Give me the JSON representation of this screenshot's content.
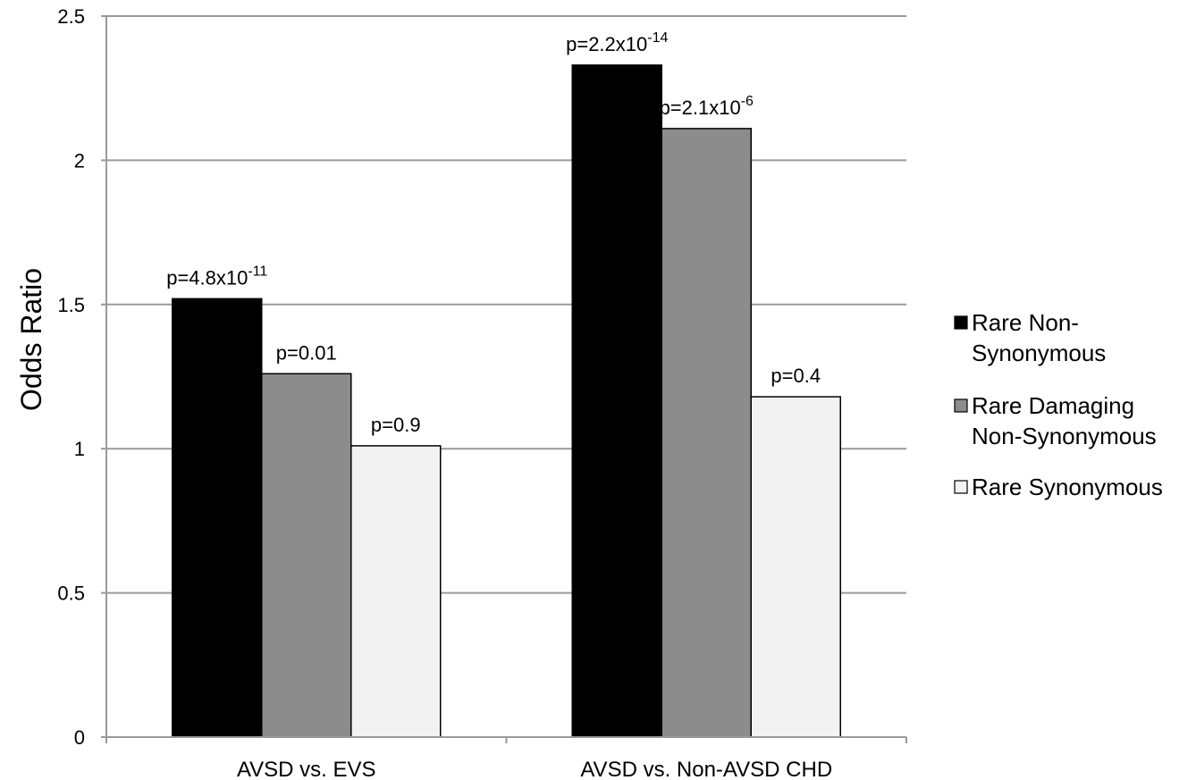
{
  "chart_data": {
    "type": "bar",
    "title": "",
    "xlabel": "",
    "ylabel": "Odds Ratio",
    "ylim": [
      0,
      2.5
    ],
    "yticks": [
      "0",
      "0.5",
      "1",
      "1.5",
      "2",
      "2.5"
    ],
    "ytick_values": [
      0,
      0.5,
      1,
      1.5,
      2,
      2.5
    ],
    "grid": true,
    "legend_position": "right",
    "categories": [
      "AVSD vs. EVS",
      "AVSD vs. Non-AVSD CHD"
    ],
    "series": [
      {
        "name": [
          "Rare Non-",
          "Synonymous"
        ],
        "color": "#000000",
        "values": [
          1.52,
          2.33
        ],
        "labels": [
          {
            "base": "p=4.8x10",
            "exp": "-11"
          },
          {
            "base": "p=2.2x10",
            "exp": "-14"
          }
        ]
      },
      {
        "name": [
          "Rare Damaging",
          "Non-Synonymous"
        ],
        "color": "#8c8c8c",
        "values": [
          1.26,
          2.11
        ],
        "labels": [
          {
            "base": "p=0.01",
            "exp": ""
          },
          {
            "base": "p=2.1x10",
            "exp": "-6"
          }
        ]
      },
      {
        "name": [
          "Rare Synonymous"
        ],
        "color": "#f2f2f2",
        "values": [
          1.01,
          1.18
        ],
        "labels": [
          {
            "base": "p=0.9",
            "exp": ""
          },
          {
            "base": "p=0.4",
            "exp": ""
          }
        ]
      }
    ]
  }
}
